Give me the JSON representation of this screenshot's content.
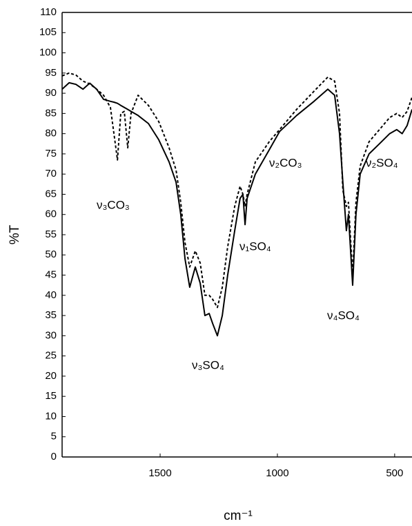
{
  "chart_data": {
    "type": "line",
    "x": [
      1918,
      1888,
      1859,
      1829,
      1800,
      1771,
      1741,
      1712,
      1697,
      1682,
      1668,
      1653,
      1638,
      1624,
      1594,
      1550,
      1506,
      1462,
      1432,
      1412,
      1394,
      1374,
      1350,
      1329,
      1309,
      1291,
      1276,
      1256,
      1235,
      1212,
      1182,
      1159,
      1147,
      1138,
      1129,
      1094,
      1035,
      991,
      918,
      844,
      785,
      756,
      735,
      721,
      706,
      697,
      679,
      665,
      647,
      609,
      565,
      521,
      491,
      468,
      447,
      426
    ],
    "series": [
      {
        "color": "#000000",
        "style": "solid",
        "values": [
          91.0,
          92.6,
          92.2,
          91.0,
          92.5,
          91.0,
          88.5,
          88.0,
          87.8,
          87.5,
          87.0,
          86.5,
          86.0,
          85.5,
          84.5,
          82.5,
          78.5,
          73.0,
          68.0,
          60.0,
          49.0,
          42.0,
          47.0,
          43.0,
          35.0,
          35.5,
          33.0,
          30.0,
          35.0,
          45.0,
          56.0,
          64.0,
          65.0,
          57.5,
          64.0,
          70.0,
          76.0,
          80.5,
          84.5,
          88.0,
          91.0,
          89.5,
          80.0,
          68.0,
          56.0,
          60.0,
          42.5,
          60.0,
          70.0,
          75.0,
          77.5,
          80.0,
          81.0,
          80.0,
          82.0,
          86.0
        ]
      },
      {
        "color": "#000000",
        "style": "dashed",
        "values": [
          94.3,
          95.0,
          94.5,
          93.0,
          92.3,
          91.0,
          89.5,
          86.5,
          80.0,
          73.5,
          85.0,
          85.5,
          76.5,
          85.0,
          89.5,
          87.0,
          83.0,
          76.5,
          71.0,
          63.0,
          53.0,
          47.0,
          51.0,
          48.0,
          40.0,
          40.0,
          39.0,
          37.0,
          42.0,
          52.0,
          62.0,
          67.0,
          65.0,
          62.0,
          65.0,
          73.0,
          78.0,
          81.0,
          86.0,
          90.5,
          94.0,
          93.0,
          85.0,
          66.0,
          62.0,
          63.0,
          45.0,
          63.0,
          72.0,
          78.0,
          81.0,
          84.0,
          85.0,
          84.0,
          85.5,
          89.0
        ]
      }
    ],
    "xlim": [
      1918,
      426
    ],
    "xticks": [
      1500,
      1000,
      500
    ],
    "ylim": [
      0,
      110
    ],
    "yticks": [
      0,
      5,
      10,
      15,
      20,
      25,
      30,
      35,
      40,
      45,
      50,
      55,
      60,
      65,
      70,
      75,
      80,
      85,
      90,
      95,
      100,
      105,
      110
    ],
    "xlabel": "cm⁻¹",
    "ylabel": "%T",
    "annotations": [
      "ν₃CO₃",
      "ν₂CO₃",
      "ν₁SO₄",
      "ν₃SO₄",
      "ν₄SO₄",
      "ν₂SO₄"
    ]
  }
}
